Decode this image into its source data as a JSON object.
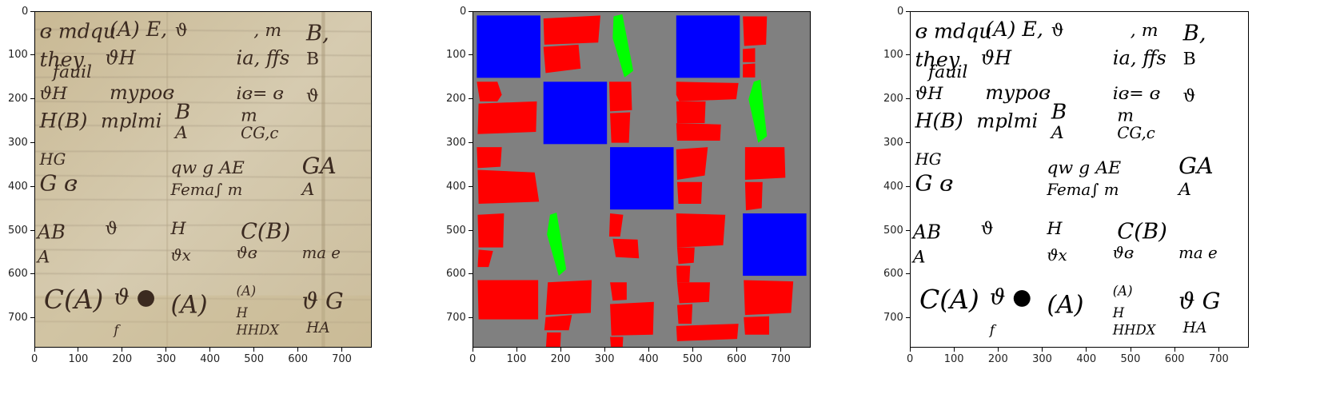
{
  "figure": {
    "panels": [
      {
        "id": "original",
        "description_hidden": true
      },
      {
        "id": "segmentation",
        "description_hidden": true
      },
      {
        "id": "binarized",
        "description_hidden": true
      }
    ],
    "axes": {
      "xticks": [
        "0",
        "100",
        "200",
        "300",
        "400",
        "500",
        "600",
        "700"
      ],
      "yticks": [
        "0",
        "100",
        "200",
        "300",
        "400",
        "500",
        "600",
        "700"
      ]
    },
    "colors": {
      "parchment": "#cfc2a3",
      "ink": "#3b2a20",
      "segment_blue": "#0000ff",
      "segment_red": "#ff0000",
      "segment_green": "#00ff00",
      "segment_background": "#808080",
      "binary_ink": "#000000",
      "binary_background": "#ffffff"
    },
    "handwriting_glyphs": [
      "dmdqu (A) E, ϑ , m B,",
      "they ϑH in ffs B",
      "fauil ϑ",
      "ϑH mypoɞ iɞ= ɞ ϑ",
      "H(B) mplmi B A m CG,c",
      "HG qw g AE GA",
      "G ɞ Fema∫ m A",
      "AB ϑ H C(B)",
      "A ϑx ϑɞ ma e",
      "C(A) ϑ ϑ (A) (A) H G",
      "f H HHDX HA"
    ]
  }
}
